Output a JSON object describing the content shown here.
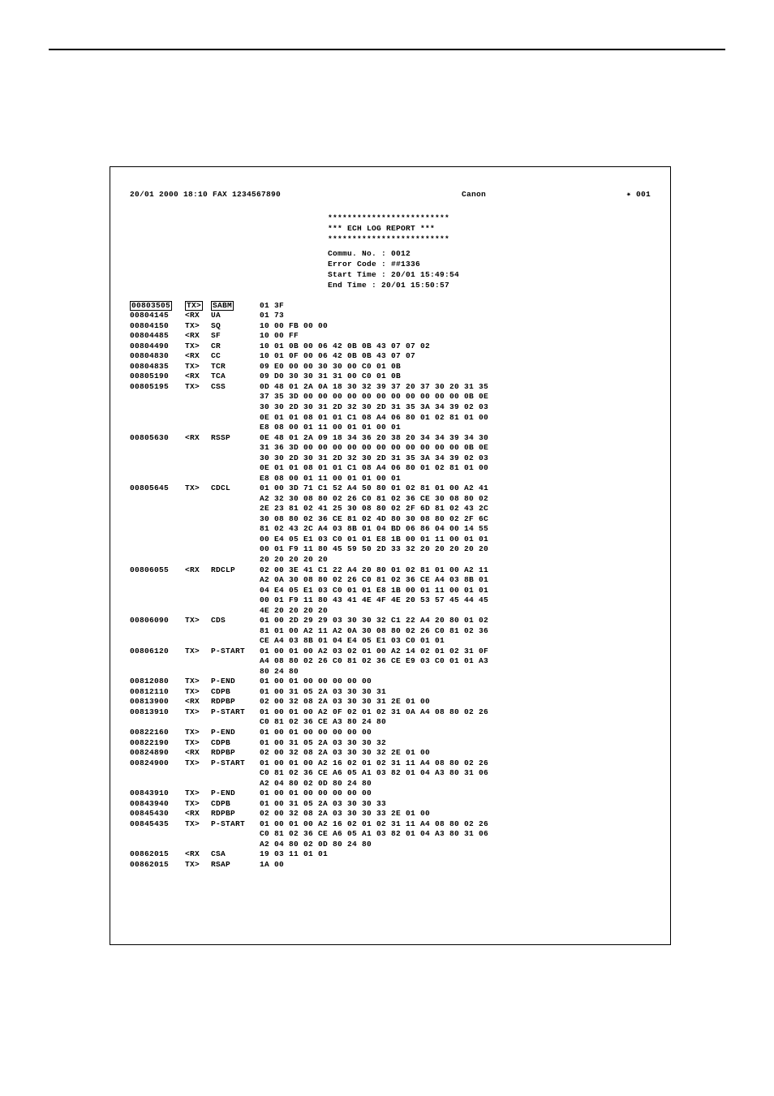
{
  "header": {
    "left": "20/01 2000 18:10 FAX 1234567890",
    "center": "Canon",
    "right": "✷ 001"
  },
  "title": {
    "stars": "*************************",
    "line": "***   ECH LOG REPORT   ***"
  },
  "info": {
    "commu": "Commu. No. : 0012",
    "error": "Error Code : ##1336",
    "start": "Start Time : 20/01 15:49:54",
    "end": "End Time   : 20/01 15:50:57"
  },
  "rows": [
    {
      "t": "00803505",
      "d": "TX>",
      "c": "SABM",
      "h": "01 3F",
      "boxed": true
    },
    {
      "t": "00804145",
      "d": "<RX",
      "c": "UA",
      "h": "01 73"
    },
    {
      "t": "00804150",
      "d": "TX>",
      "c": "SQ",
      "h": "10 00 FB 00 00"
    },
    {
      "t": "00804485",
      "d": "<RX",
      "c": "SF",
      "h": "10 00 FF"
    },
    {
      "t": "00804490",
      "d": "TX>",
      "c": "CR",
      "h": "10 01 0B 00 06 42 0B 0B 43 07 07 02"
    },
    {
      "t": "00804830",
      "d": "<RX",
      "c": "CC",
      "h": "10 01 0F 00 06 42 0B 0B 43 07 07"
    },
    {
      "t": "00804835",
      "d": "TX>",
      "c": "TCR",
      "h": "09 E0 00 00 30 30 00 C0 01 0B"
    },
    {
      "t": "00805190",
      "d": "<RX",
      "c": "TCA",
      "h": "09 D0 30 30 31 31 00 C0 01 0B"
    },
    {
      "t": "00805195",
      "d": "TX>",
      "c": "CSS",
      "h": "0D 48 01 2A 0A 18 30 32 39 37 20 37 30 20 31 35"
    },
    {
      "t": "",
      "d": "",
      "c": "",
      "h": "37 35 3D 00 00 00 00 00 00 00 00 00 00 00 0B 0E"
    },
    {
      "t": "",
      "d": "",
      "c": "",
      "h": "30 30 2D 30 31 2D 32 30 2D 31 35 3A 34 39 02 03"
    },
    {
      "t": "",
      "d": "",
      "c": "",
      "h": "0E 01 01 08 01 01 C1 08 A4 06 80 01 02 81 01 00"
    },
    {
      "t": "",
      "d": "",
      "c": "",
      "h": "E8 08 00 01 11 00 01 01 00 01"
    },
    {
      "t": "00805630",
      "d": "<RX",
      "c": "RSSP",
      "h": "0E 48 01 2A 09 18 34 36 20 38 20 34 34 39 34 30"
    },
    {
      "t": "",
      "d": "",
      "c": "",
      "h": "31 36 3D 00 00 00 00 00 00 00 00 00 00 00 0B 0E"
    },
    {
      "t": "",
      "d": "",
      "c": "",
      "h": "30 30 2D 30 31 2D 32 30 2D 31 35 3A 34 39 02 03"
    },
    {
      "t": "",
      "d": "",
      "c": "",
      "h": "0E 01 01 08 01 01 C1 08 A4 06 80 01 02 81 01 00"
    },
    {
      "t": "",
      "d": "",
      "c": "",
      "h": "E8 08 00 01 11 00 01 01 00 01"
    },
    {
      "t": "00805645",
      "d": "TX>",
      "c": "CDCL",
      "h": "01 00 3D 71 C1 52 A4 50 80 01 02 81 01 00 A2 41"
    },
    {
      "t": "",
      "d": "",
      "c": "",
      "h": "A2 32 30 08 80 02 26 C0 81 02 36 CE 30 08 80 02"
    },
    {
      "t": "",
      "d": "",
      "c": "",
      "h": "2E 23 81 02 41 25 30 08 80 02 2F 6D 81 02 43 2C"
    },
    {
      "t": "",
      "d": "",
      "c": "",
      "h": "30 08 80 02 36 CE 81 02 4D 80 30 08 80 02 2F 6C"
    },
    {
      "t": "",
      "d": "",
      "c": "",
      "h": "81 02 43 2C A4 03 8B 01 04 BD 06 86 04 00 14 55"
    },
    {
      "t": "",
      "d": "",
      "c": "",
      "h": "00 E4 05 E1 03 C0 01 01 E8 1B 00 01 11 00 01 01"
    },
    {
      "t": "",
      "d": "",
      "c": "",
      "h": "00 01 F9 11 80 45 59 50 2D 33 32 20 20 20 20 20"
    },
    {
      "t": "",
      "d": "",
      "c": "",
      "h": "20 20 20 20 20"
    },
    {
      "t": "00806055",
      "d": "<RX",
      "c": "RDCLP",
      "h": "02 00 3E 41 C1 22 A4 20 80 01 02 81 01 00 A2 11"
    },
    {
      "t": "",
      "d": "",
      "c": "",
      "h": "A2 0A 30 08 80 02 26 C0 81 02 36 CE A4 03 8B 01"
    },
    {
      "t": "",
      "d": "",
      "c": "",
      "h": "04 E4 05 E1 03 C0 01 01 E8 1B 00 01 11 00 01 01"
    },
    {
      "t": "",
      "d": "",
      "c": "",
      "h": "00 01 F9 11 80 43 41 4E 4F 4E 20 53 57 45 44 45"
    },
    {
      "t": "",
      "d": "",
      "c": "",
      "h": "4E 20 20 20 20"
    },
    {
      "t": "00806090",
      "d": "TX>",
      "c": "CDS",
      "h": "01 00 2D 29 29 03 30 30 32 C1 22 A4 20 80 01 02"
    },
    {
      "t": "",
      "d": "",
      "c": "",
      "h": "81 01 00 A2 11 A2 0A 30 08 80 02 26 C0 81 02 36"
    },
    {
      "t": "",
      "d": "",
      "c": "",
      "h": "CE A4 03 8B 01 04 E4 05 E1 03 C0 01 01"
    },
    {
      "t": "00806120",
      "d": "TX>",
      "c": "P-START",
      "h": "01 00 01 00 A2 03 02 01 00 A2 14 02 01 02 31 0F"
    },
    {
      "t": "",
      "d": "",
      "c": "",
      "h": "A4 08 80 02 26 C0 81 02 36 CE E9 03 C0 01 01 A3"
    },
    {
      "t": "",
      "d": "",
      "c": "",
      "h": "80 24 80"
    },
    {
      "t": "00812080",
      "d": "TX>",
      "c": "P-END",
      "h": "01 00 01 00 00 00 00 00"
    },
    {
      "t": "00812110",
      "d": "TX>",
      "c": "CDPB",
      "h": "01 00 31 05 2A 03 30 30 31"
    },
    {
      "t": "00813900",
      "d": "<RX",
      "c": "RDPBP",
      "h": "02 00 32 08 2A 03 30 30 31 2E 01 00"
    },
    {
      "t": "00813910",
      "d": "TX>",
      "c": "P-START",
      "h": "01 00 01 00 A2 0F 02 01 02 31 0A A4 08 80 02 26"
    },
    {
      "t": "",
      "d": "",
      "c": "",
      "h": "C0 81 02 36 CE A3 80 24 80"
    },
    {
      "t": "00822160",
      "d": "TX>",
      "c": "P-END",
      "h": "01 00 01 00 00 00 00 00"
    },
    {
      "t": "00822190",
      "d": "TX>",
      "c": "CDPB",
      "h": "01 00 31 05 2A 03 30 30 32"
    },
    {
      "t": "00824890",
      "d": "<RX",
      "c": "RDPBP",
      "h": "02 00 32 08 2A 03 30 30 32 2E 01 00"
    },
    {
      "t": "00824900",
      "d": "TX>",
      "c": "P-START",
      "h": "01 00 01 00 A2 16 02 01 02 31 11 A4 08 80 02 26"
    },
    {
      "t": "",
      "d": "",
      "c": "",
      "h": "C0 81 02 36 CE A6 05 A1 03 82 01 04 A3 80 31 06"
    },
    {
      "t": "",
      "d": "",
      "c": "",
      "h": "A2 04 80 02 0D 80 24 80"
    },
    {
      "t": "00843910",
      "d": "TX>",
      "c": "P-END",
      "h": "01 00 01 00 00 00 00 00"
    },
    {
      "t": "00843940",
      "d": "TX>",
      "c": "CDPB",
      "h": "01 00 31 05 2A 03 30 30 33"
    },
    {
      "t": "00845430",
      "d": "<RX",
      "c": "RDPBP",
      "h": "02 00 32 08 2A 03 30 30 33 2E 01 00"
    },
    {
      "t": "00845435",
      "d": "TX>",
      "c": "P-START",
      "h": "01 00 01 00 A2 16 02 01 02 31 11 A4 08 80 02 26"
    },
    {
      "t": "",
      "d": "",
      "c": "",
      "h": "C0 81 02 36 CE A6 05 A1 03 82 01 04 A3 80 31 06"
    },
    {
      "t": "",
      "d": "",
      "c": "",
      "h": "A2 04 80 02 0D 80 24 80"
    },
    {
      "t": "00862015",
      "d": "<RX",
      "c": "CSA",
      "h": "19 03 11 01 01"
    },
    {
      "t": "00862015",
      "d": "TX>",
      "c": "RSAP",
      "h": "1A 00"
    }
  ]
}
